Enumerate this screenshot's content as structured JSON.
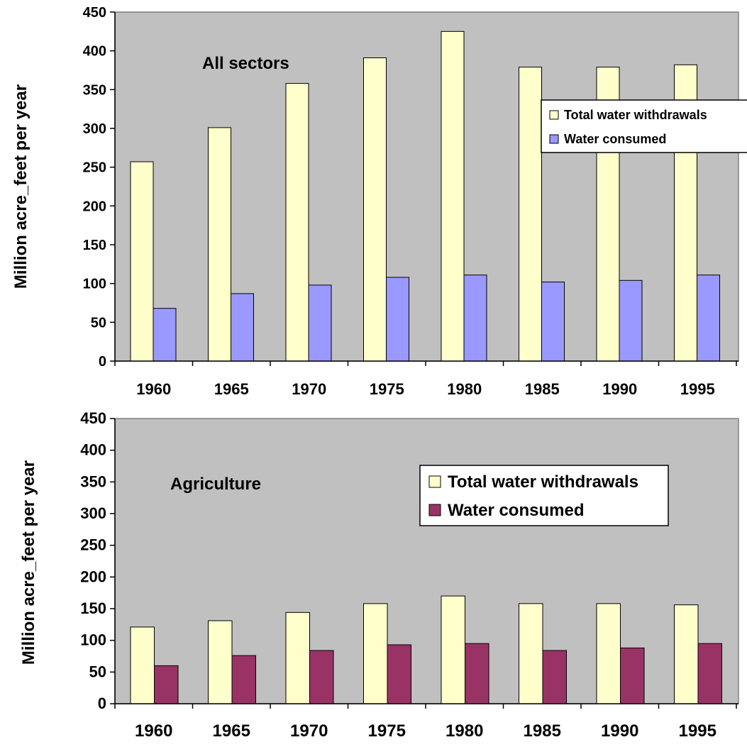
{
  "colors": {
    "plot_background": "#c0c0c0",
    "withdrawals_fill": "#ffffcc",
    "consumed_fill_all": "#9999ff",
    "consumed_fill_agriculture": "#993366",
    "axis": "#000000"
  },
  "chart_data": [
    {
      "type": "bar",
      "title": "",
      "annotation": "All sectors",
      "xlabel": "",
      "ylabel": "Million acre_feet per year",
      "categories": [
        "1960",
        "1965",
        "1970",
        "1975",
        "1980",
        "1985",
        "1990",
        "1995"
      ],
      "ylim": [
        0,
        450
      ],
      "yticks": [
        "0",
        "50",
        "100",
        "150",
        "200",
        "250",
        "300",
        "350",
        "400",
        "450"
      ],
      "grid": false,
      "legend_position": "right",
      "series": [
        {
          "name": "Total water withdrawals",
          "color": "#ffffcc",
          "values": [
            257,
            301,
            358,
            391,
            425,
            379,
            379,
            382
          ]
        },
        {
          "name": "Water consumed",
          "color": "#9999ff",
          "values": [
            68,
            87,
            98,
            108,
            111,
            102,
            104,
            111
          ]
        }
      ]
    },
    {
      "type": "bar",
      "title": "",
      "annotation": "Agriculture",
      "xlabel": "",
      "ylabel": "Million acre_feet per year",
      "categories": [
        "1960",
        "1965",
        "1970",
        "1975",
        "1980",
        "1985",
        "1990",
        "1995"
      ],
      "ylim": [
        0,
        450
      ],
      "yticks": [
        "0",
        "50",
        "100",
        "150",
        "200",
        "250",
        "300",
        "350",
        "400",
        "450"
      ],
      "grid": false,
      "legend_position": "top-right",
      "series": [
        {
          "name": "Total water withdrawals",
          "color": "#ffffcc",
          "values": [
            121,
            131,
            144,
            158,
            170,
            158,
            158,
            156
          ]
        },
        {
          "name": "Water consumed",
          "color": "#993366",
          "values": [
            60,
            76,
            84,
            93,
            95,
            84,
            88,
            95
          ]
        }
      ]
    }
  ]
}
